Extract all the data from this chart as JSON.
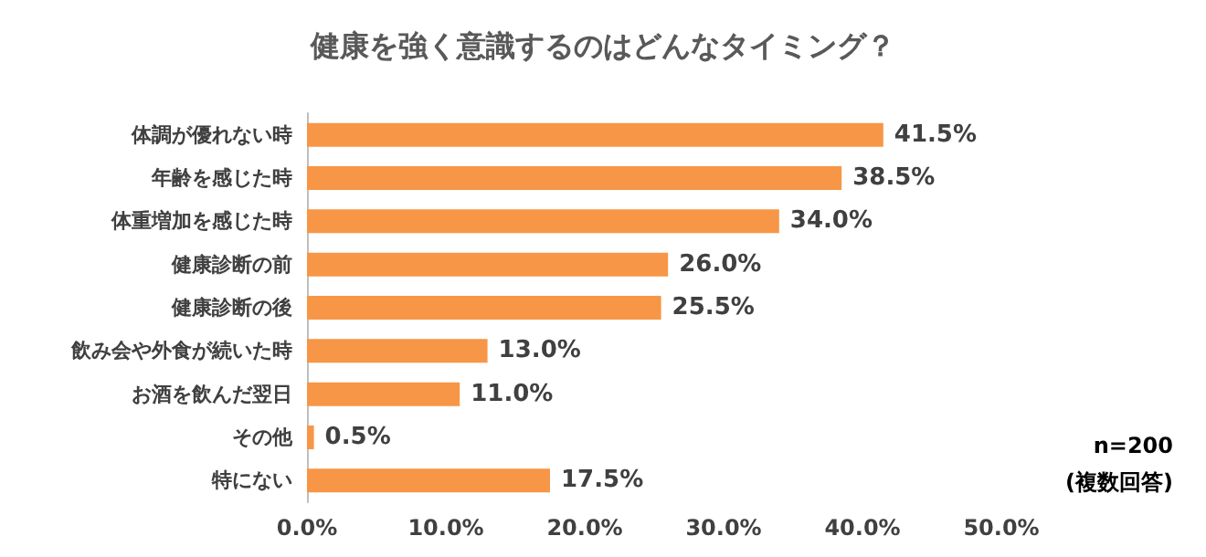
{
  "chart_data": {
    "type": "bar",
    "orientation": "horizontal",
    "title": "健康を強く意識するのはどんなタイミング？",
    "categories": [
      "体調が優れない時",
      "年齢を感じた時",
      "体重増加を感じた時",
      "健康診断の前",
      "健康診断の後",
      "飲み会や外食が続いた時",
      "お酒を飲んだ翌日",
      "その他",
      "特にない"
    ],
    "values": [
      41.5,
      38.5,
      34.0,
      26.0,
      25.5,
      13.0,
      11.0,
      0.5,
      17.5
    ],
    "value_labels": [
      "41.5%",
      "38.5%",
      "34.0%",
      "26.0%",
      "25.5%",
      "13.0%",
      "11.0%",
      "0.5%",
      "17.5%"
    ],
    "color": "#f79646",
    "xlim": [
      0,
      50
    ],
    "xticks": [
      {
        "value": 0,
        "label": "0.0%"
      },
      {
        "value": 10,
        "label": "10.0%"
      },
      {
        "value": 20,
        "label": "20.0%"
      },
      {
        "value": 30,
        "label": "30.0%"
      },
      {
        "value": 40,
        "label": "40.0%"
      },
      {
        "value": 50,
        "label": "50.0%"
      }
    ],
    "grid": false,
    "annotations": [
      "n=200",
      "(複数回答)"
    ]
  }
}
